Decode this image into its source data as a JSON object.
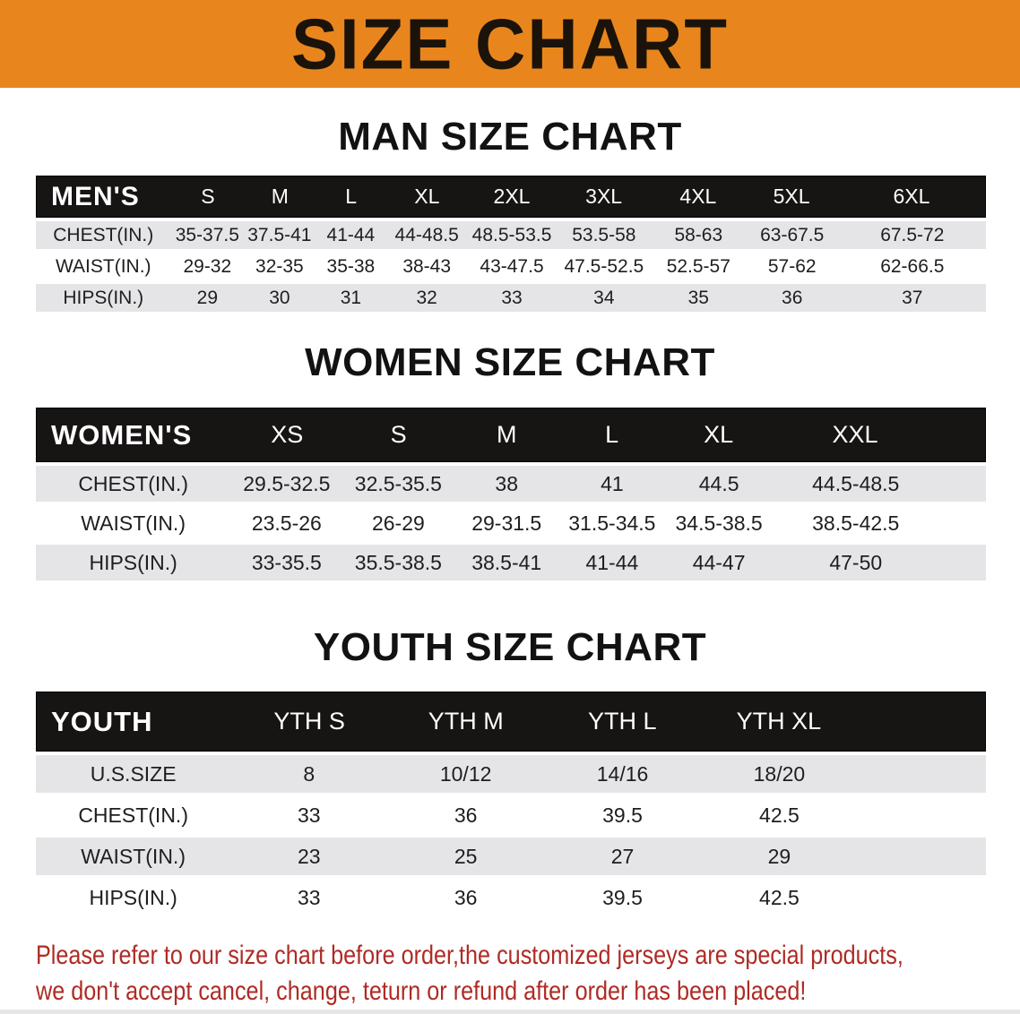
{
  "banner": {
    "title": "SIZE CHART"
  },
  "sections": [
    {
      "id": "men",
      "title": "MAN SIZE CHART",
      "table": {
        "header_label": "MEN'S",
        "columns": [
          "S",
          "M",
          "L",
          "XL",
          "2XL",
          "3XL",
          "4XL",
          "5XL",
          "6XL"
        ],
        "rows": [
          {
            "label": "CHEST(IN.)",
            "values": [
              "35-37.5",
              "37.5-41",
              "41-44",
              "44-48.5",
              "48.5-53.5",
              "53.5-58",
              "58-63",
              "63-67.5",
              "67.5-72"
            ]
          },
          {
            "label": "WAIST(IN.)",
            "values": [
              "29-32",
              "32-35",
              "35-38",
              "38-43",
              "43-47.5",
              "47.5-52.5",
              "52.5-57",
              "57-62",
              "62-66.5"
            ]
          },
          {
            "label": "HIPS(IN.)",
            "values": [
              "29",
              "30",
              "31",
              "32",
              "33",
              "34",
              "35",
              "36",
              "37"
            ]
          }
        ]
      }
    },
    {
      "id": "women",
      "title": "WOMEN SIZE CHART",
      "table": {
        "header_label": "WOMEN'S",
        "columns": [
          "XS",
          "S",
          "M",
          "L",
          "XL",
          "XXL"
        ],
        "rows": [
          {
            "label": "CHEST(IN.)",
            "values": [
              "29.5-32.5",
              "32.5-35.5",
              "38",
              "41",
              "44.5",
              "44.5-48.5"
            ]
          },
          {
            "label": "WAIST(IN.)",
            "values": [
              "23.5-26",
              "26-29",
              "29-31.5",
              "31.5-34.5",
              "34.5-38.5",
              "38.5-42.5"
            ]
          },
          {
            "label": "HIPS(IN.)",
            "values": [
              "33-35.5",
              "35.5-38.5",
              "38.5-41",
              "41-44",
              "44-47",
              "47-50"
            ]
          }
        ]
      }
    },
    {
      "id": "youth",
      "title": "YOUTH SIZE CHART",
      "table": {
        "header_label": "YOUTH",
        "columns": [
          "YTH S",
          "YTH M",
          "YTH L",
          "YTH XL"
        ],
        "rows": [
          {
            "label": "U.S.SIZE",
            "values": [
              "8",
              "10/12",
              "14/16",
              "18/20"
            ]
          },
          {
            "label": "CHEST(IN.)",
            "values": [
              "33",
              "36",
              "39.5",
              "42.5"
            ]
          },
          {
            "label": "WAIST(IN.)",
            "values": [
              "23",
              "25",
              "27",
              "29"
            ]
          },
          {
            "label": "HIPS(IN.)",
            "values": [
              "33",
              "36",
              "39.5",
              "42.5"
            ]
          }
        ]
      }
    }
  ],
  "footer_note": {
    "line1": "Please refer to our size chart before order,the customized jerseys are special products,",
    "line2": "we don't accept cancel, change, teturn or refund after order has been placed!"
  },
  "colors": {
    "banner_bg": "#E8861D",
    "banner_text": "#1B130A",
    "header_bar": "#171414",
    "header_text": "#FFFFFF",
    "row_gray": "#E5E5E7",
    "body_text": "#1E1E1E",
    "note_red": "#AE2B24"
  }
}
